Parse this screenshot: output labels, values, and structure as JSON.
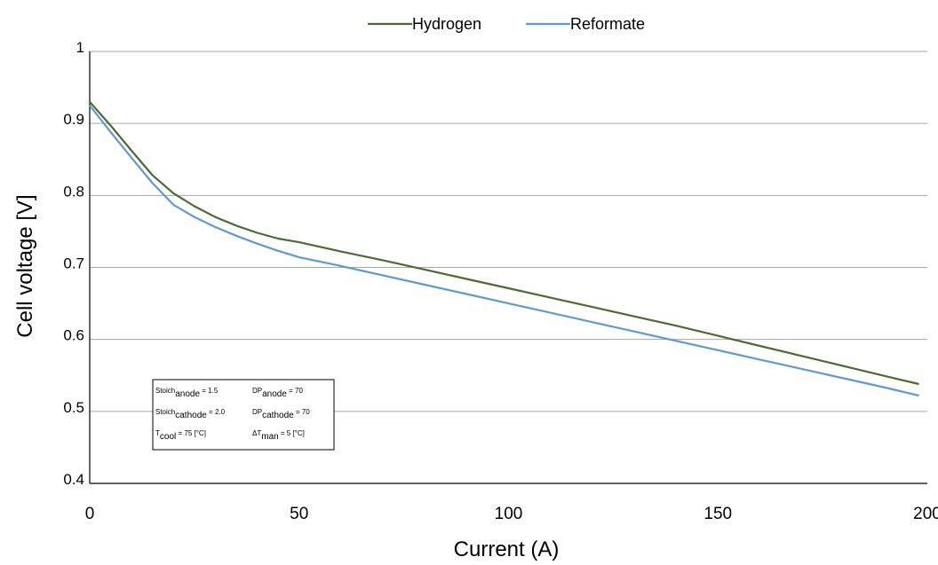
{
  "chart_data": {
    "type": "line",
    "title": "",
    "xlabel": "Current (A)",
    "ylabel": "Cell voltage [V]",
    "xlim": [
      0,
      200
    ],
    "ylim": [
      0.4,
      1.0
    ],
    "x_ticks": [
      "0",
      "50",
      "100",
      "150",
      "200"
    ],
    "y_ticks": [
      "0.4",
      "0.5",
      "0.6",
      "0.7",
      "0.8",
      "0.9",
      "1"
    ],
    "grid": "horizontal",
    "legend_position": "top-center",
    "series": [
      {
        "name": "Hydrogen",
        "color": "#4e6b2f",
        "x": [
          0,
          5,
          10,
          15,
          20,
          25,
          30,
          35,
          40,
          45,
          50,
          60,
          70,
          80,
          90,
          100,
          110,
          120,
          130,
          140,
          150,
          160,
          170,
          180,
          190,
          198
        ],
        "y": [
          0.93,
          0.897,
          0.862,
          0.828,
          0.803,
          0.785,
          0.77,
          0.758,
          0.748,
          0.74,
          0.735,
          0.722,
          0.71,
          0.697,
          0.684,
          0.671,
          0.658,
          0.645,
          0.632,
          0.619,
          0.605,
          0.591,
          0.577,
          0.563,
          0.549,
          0.538
        ]
      },
      {
        "name": "Reformate",
        "color": "#5b9bd5",
        "x": [
          0,
          5,
          10,
          15,
          20,
          25,
          30,
          35,
          40,
          45,
          50,
          60,
          70,
          80,
          90,
          100,
          110,
          120,
          130,
          140,
          150,
          160,
          170,
          180,
          190,
          198
        ],
        "y": [
          0.925,
          0.888,
          0.852,
          0.817,
          0.787,
          0.77,
          0.756,
          0.744,
          0.733,
          0.723,
          0.714,
          0.702,
          0.689,
          0.676,
          0.663,
          0.65,
          0.637,
          0.624,
          0.611,
          0.598,
          0.585,
          0.572,
          0.559,
          0.546,
          0.533,
          0.522
        ]
      }
    ],
    "annotation": {
      "rows": [
        [
          {
            "base": "Stoich",
            "sub": "anode",
            "rest": " = 1.5"
          },
          {
            "base": "DP",
            "sub": "anode",
            "rest": " = 70"
          }
        ],
        [
          {
            "base": "Stoich",
            "sub": "cathode",
            "rest": " = 2.0"
          },
          {
            "base": "DP",
            "sub": "cathode",
            "rest": " = 70"
          }
        ],
        [
          {
            "base": "T",
            "sub": "cool",
            "rest": " = 75 [°C]"
          },
          {
            "base": "ΔT",
            "sub": "man",
            "rest": " = 5 [°C]"
          }
        ]
      ]
    }
  }
}
